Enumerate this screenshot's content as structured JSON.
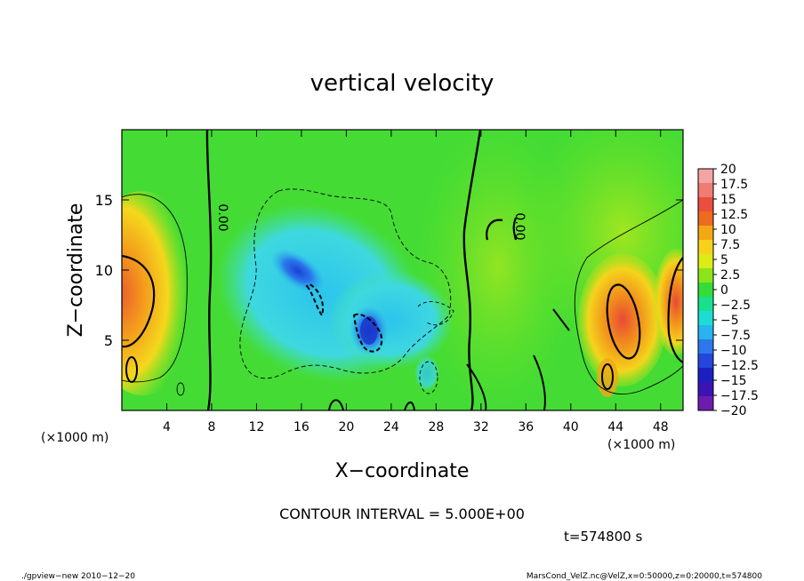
{
  "chart_data": {
    "type": "heatmap",
    "title": "vertical velocity",
    "xlabel": "X−coordinate",
    "ylabel": "Z−coordinate",
    "xlim": [
      0,
      50
    ],
    "ylim": [
      0,
      20
    ],
    "x_ticks": [
      {
        "v": 4,
        "label": "4"
      },
      {
        "v": 8,
        "label": "8"
      },
      {
        "v": 12,
        "label": "12"
      },
      {
        "v": 16,
        "label": "16"
      },
      {
        "v": 20,
        "label": "20"
      },
      {
        "v": 24,
        "label": "24"
      },
      {
        "v": 28,
        "label": "28"
      },
      {
        "v": 32,
        "label": "32"
      },
      {
        "v": 36,
        "label": "36"
      },
      {
        "v": 40,
        "label": "40"
      },
      {
        "v": 44,
        "label": "44"
      },
      {
        "v": 48,
        "label": "48"
      }
    ],
    "y_ticks": [
      {
        "v": 5,
        "label": "5"
      },
      {
        "v": 10,
        "label": "10"
      },
      {
        "v": 15,
        "label": "15"
      }
    ],
    "x_unit": "(×1000 m)",
    "y_unit": "(×1000 m)",
    "contour_label": "0.00",
    "colorbar": {
      "labels": [
        "20",
        "17.5",
        "15",
        "12.5",
        "10",
        "7.5",
        "5",
        "2.5",
        "0",
        "−2.5",
        "−5",
        "−7.5",
        "−10",
        "−12.5",
        "−15",
        "−17.5",
        "−20"
      ],
      "colors": [
        "#f4a4a4",
        "#f07c74",
        "#ea4e3e",
        "#ee6a1e",
        "#f4a814",
        "#f8d21a",
        "#dcec16",
        "#8ce41a",
        "#34dc38",
        "#18e08c",
        "#1cdcd4",
        "#28b4ee",
        "#2c78ea",
        "#2446dc",
        "#1c20c0",
        "#3c14b4",
        "#6e1cb0"
      ]
    },
    "features": [
      {
        "name": "left updraft core",
        "x": 1.3,
        "z": 7.2,
        "w_max": 12
      },
      {
        "name": "right updraft core",
        "x": 45,
        "z": 6.5,
        "w_max": 13
      },
      {
        "name": "downdraft core",
        "x": 21.5,
        "z": 5.3,
        "w_min": -13
      },
      {
        "name": "downdraft band",
        "x": 16.5,
        "z": 9,
        "w_min": -8
      }
    ]
  },
  "contour_interval_text": "CONTOUR INTERVAL = 5.000E+00",
  "time_text": "t=574800 s",
  "footer_left": "./gpview−new  2010−12−20",
  "footer_right": "MarsCond_VelZ.nc@VelZ,x=0:50000,z=0:20000,t=574800"
}
